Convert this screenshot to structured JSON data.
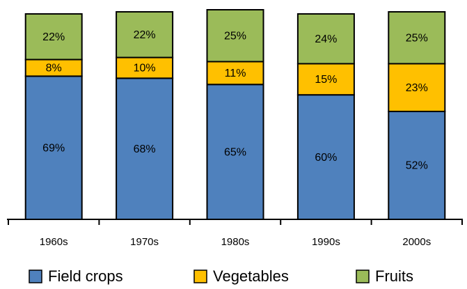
{
  "chart_data": {
    "type": "stacked-bar",
    "categories": [
      "1960s",
      "1970s",
      "1980s",
      "1990s",
      "2000s"
    ],
    "series": [
      {
        "name": "Field crops",
        "color": "#4f81bd",
        "values": [
          69,
          68,
          65,
          60,
          52
        ],
        "value_labels": [
          "69%",
          "68%",
          "65%",
          "60%",
          "52%"
        ]
      },
      {
        "name": "Vegetables",
        "color": "#ffc000",
        "values": [
          8,
          10,
          11,
          15,
          23
        ],
        "value_labels": [
          "8%",
          "10%",
          "11%",
          "15%",
          "23%"
        ]
      },
      {
        "name": "Fruits",
        "color": "#9bbb59",
        "values": [
          22,
          22,
          25,
          24,
          25
        ],
        "value_labels": [
          "22%",
          "22%",
          "25%",
          "24%",
          "25%"
        ]
      }
    ]
  }
}
